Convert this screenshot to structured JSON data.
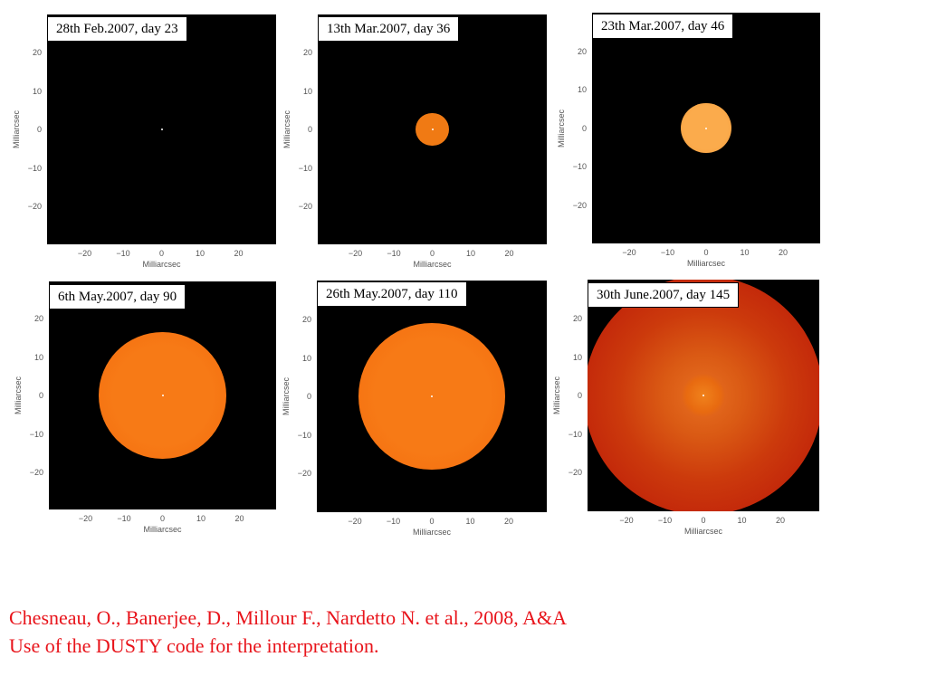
{
  "figure": {
    "axis_label": "Milliarcsec",
    "x_ticks": [
      "−20",
      "−10",
      "0",
      "10",
      "20"
    ],
    "y_ticks": [
      "20",
      "10",
      "0",
      "−10",
      "−20"
    ],
    "panels": [
      {
        "label": "28th Feb.2007, day 23",
        "disk_diameter_mas": 0,
        "style": "point"
      },
      {
        "label": "13th Mar.2007, day 36",
        "disk_diameter_mas": 8.5,
        "style": "small"
      },
      {
        "label": "23th Mar.2007, day 46",
        "disk_diameter_mas": 13,
        "style": "medium"
      },
      {
        "label": "6th May.2007, day 90",
        "disk_diameter_mas": 33,
        "style": "large"
      },
      {
        "label": "26th May.2007, day 110",
        "disk_diameter_mas": 38,
        "style": "large"
      },
      {
        "label": "30th June.2007, day 145",
        "disk_diameter_mas": 62,
        "style": "red"
      }
    ],
    "colors": {
      "small": "#f07a14",
      "medium": "#f8a040",
      "large": "#f57010",
      "red_center": "#e86a10",
      "red_edge": "#b81208"
    }
  },
  "caption": {
    "line1": "Chesneau, O., Banerjee, D., Millour F., Nardetto N. et al., 2008, A&A",
    "line2": "Use of the DUSTY code for the interpretation."
  }
}
